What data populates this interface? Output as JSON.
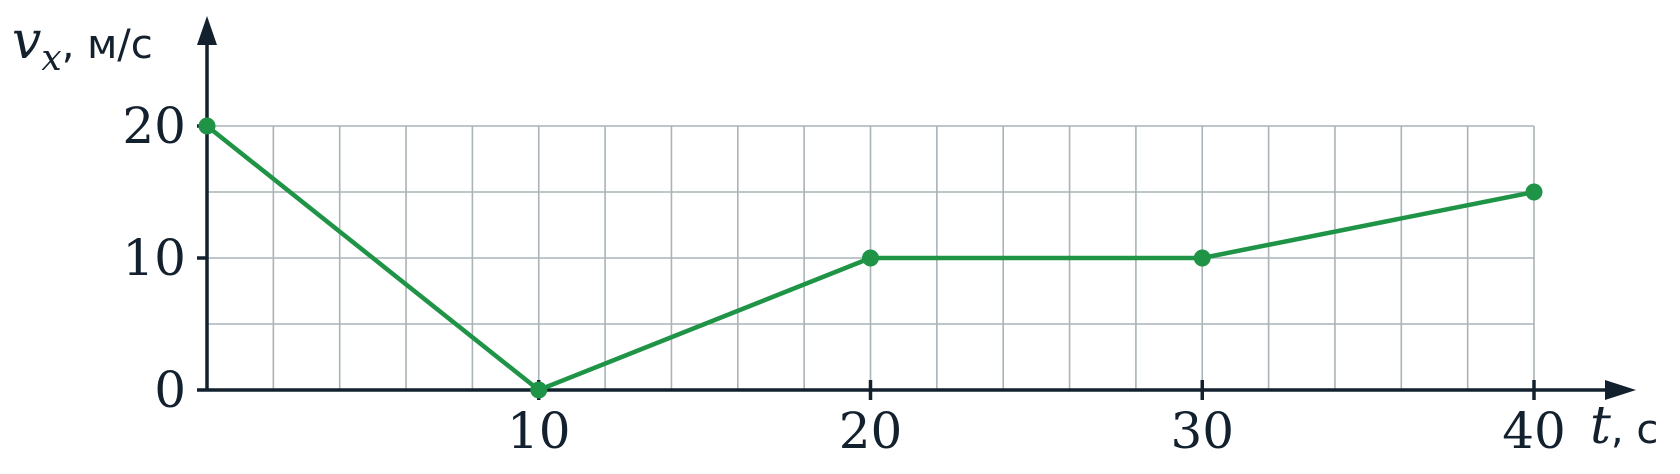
{
  "chart_data": {
    "type": "line",
    "xlabel": {
      "variable": "t",
      "unit": ", с"
    },
    "ylabel": {
      "variable": "v",
      "subscript": "x",
      "unit": ", м/с"
    },
    "xlim": [
      0,
      40
    ],
    "ylim": [
      0,
      20
    ],
    "x_ticks": [
      10,
      20,
      30,
      40
    ],
    "x_tick_labels": [
      "10",
      "20",
      "30",
      "40"
    ],
    "y_ticks": [
      0,
      10,
      20
    ],
    "y_tick_labels": [
      "0",
      "10",
      "20"
    ],
    "grid": true,
    "grid_step_x": 2,
    "grid_step_y": 5,
    "series": [
      {
        "color": "#1f9447",
        "x": [
          0,
          10,
          20,
          30,
          40
        ],
        "y": [
          20,
          0,
          10,
          10,
          15
        ]
      }
    ]
  }
}
